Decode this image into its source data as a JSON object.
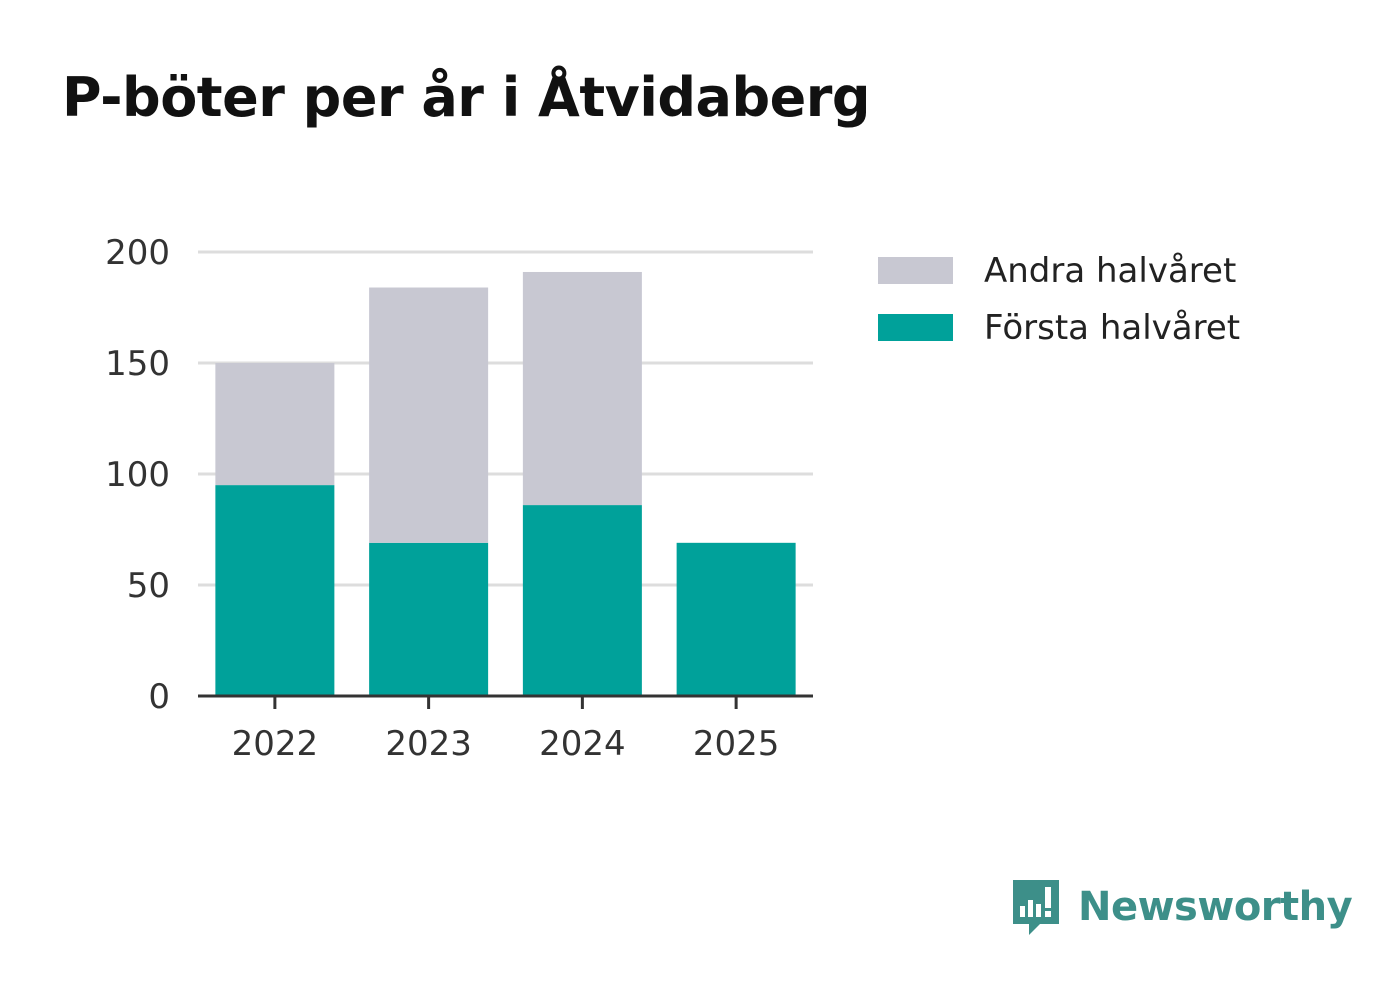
{
  "chart_data": {
    "type": "bar",
    "stacked": true,
    "title": "P-böter per år i Åtvidaberg",
    "xlabel": "",
    "ylabel": "",
    "categories": [
      "2022",
      "2023",
      "2024",
      "2025"
    ],
    "series": [
      {
        "name": "Första halvåret",
        "color": "#00a19a",
        "values": [
          95,
          69,
          86,
          69
        ]
      },
      {
        "name": "Andra halvåret",
        "color": "#c8c8d2",
        "values": [
          55,
          115,
          105,
          0
        ]
      }
    ],
    "legend_order": [
      "Andra halvåret",
      "Första halvåret"
    ],
    "yticks": [
      "0",
      "50",
      "100",
      "150",
      "200"
    ],
    "ylim": [
      0,
      200
    ],
    "grid": true,
    "legend_position": "right"
  },
  "colors": {
    "grid": "#dddddd",
    "axis": "#333333",
    "tick_text": "#333333",
    "brand": "#3d8f89"
  },
  "brand": {
    "name": "Newsworthy",
    "icon": "newsworthy-logo-icon"
  }
}
